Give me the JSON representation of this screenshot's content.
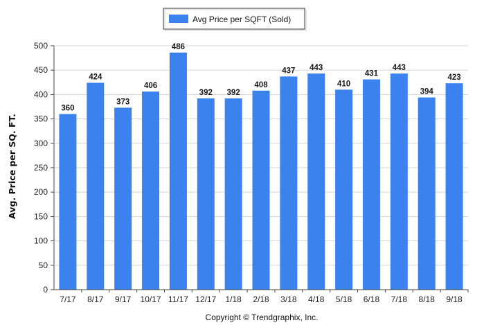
{
  "chart_data": {
    "type": "bar",
    "categories": [
      "7/17",
      "8/17",
      "9/17",
      "10/17",
      "11/17",
      "12/17",
      "1/18",
      "2/18",
      "3/18",
      "4/18",
      "5/18",
      "6/18",
      "7/18",
      "8/18",
      "9/18"
    ],
    "series": [
      {
        "name": "Avg Price per SQFT (Sold)",
        "values": [
          360,
          424,
          373,
          406,
          486,
          392,
          392,
          408,
          437,
          443,
          410,
          431,
          443,
          394,
          423
        ]
      }
    ],
    "ylabel": "Avg. Price per SQ. FT.",
    "xlabel": "",
    "ylim": [
      0,
      500
    ],
    "yticks": [
      0,
      50,
      100,
      150,
      200,
      250,
      300,
      350,
      400,
      450,
      500
    ],
    "grid": true,
    "legend_position": "top-center",
    "data_labels": true,
    "bar_color": "#3b82ef"
  },
  "footer": {
    "copyright": "Copyright © Trendgraphix, Inc."
  }
}
